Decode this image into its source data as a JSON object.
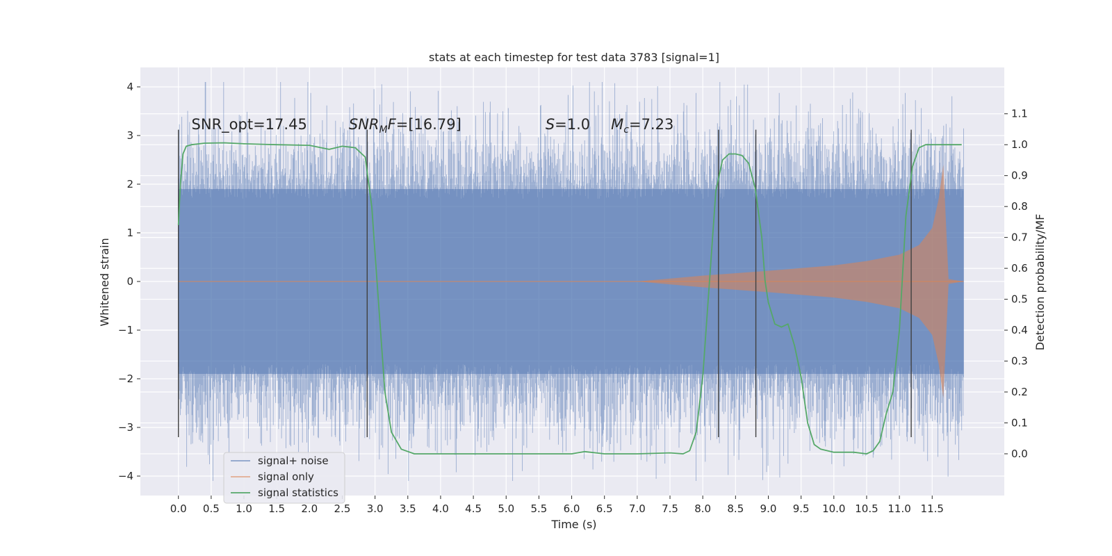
{
  "chart_data": {
    "type": "line",
    "title": "stats at each timestep for test data 3783 [signal=1]",
    "xlabel": "Time (s)",
    "ylabel": "Whitened strain",
    "y2label": "Detection probability/MF",
    "xlim": [
      -0.58,
      12.6
    ],
    "ylim": [
      -4.4,
      4.4
    ],
    "y2lim": [
      -0.135,
      1.25
    ],
    "x_ticks": [
      0.0,
      0.5,
      1.0,
      1.5,
      2.0,
      2.5,
      3.0,
      3.5,
      4.0,
      4.5,
      5.0,
      5.5,
      6.0,
      6.5,
      7.0,
      7.5,
      8.0,
      8.5,
      9.0,
      9.5,
      10.0,
      10.5,
      11.0,
      11.5
    ],
    "x_tick_labels": [
      "0.0",
      "0.5",
      "1.0",
      "1.5",
      "2.0",
      "2.5",
      "3.0",
      "3.5",
      "4.0",
      "4.5",
      "5.0",
      "5.5",
      "6.0",
      "6.5",
      "7.0",
      "7.5",
      "8.0",
      "8.5",
      "9.0",
      "9.5",
      "10.0",
      "10.5",
      "11.0",
      "11.5"
    ],
    "y_ticks": [
      -4,
      -3,
      -2,
      -1,
      0,
      1,
      2,
      3,
      4
    ],
    "y_tick_labels": [
      "−4",
      "−3",
      "−2",
      "−1",
      "0",
      "1",
      "2",
      "3",
      "4"
    ],
    "y2_ticks": [
      0.0,
      0.1,
      0.2,
      0.3,
      0.4,
      0.5,
      0.6,
      0.7,
      0.8,
      0.9,
      1.0,
      1.1
    ],
    "y2_tick_labels": [
      "0.0",
      "0.1",
      "0.2",
      "0.3",
      "0.4",
      "0.5",
      "0.6",
      "0.7",
      "0.8",
      "0.9",
      "1.0",
      "1.1"
    ],
    "grid": true,
    "legend_position": "lower-left",
    "annotations": [
      {
        "text": "SNR_opt=17.45",
        "x": 0.2
      },
      {
        "text": "SNR_MF=[16.79]",
        "x": 2.6
      },
      {
        "text": "S=1.0",
        "x": 5.6
      },
      {
        "text": "M_c=7.23",
        "x": 6.6
      }
    ],
    "vertical_markers": [
      0.0,
      2.88,
      8.24,
      8.81,
      11.18
    ],
    "series": [
      {
        "name": "signal+ noise",
        "axis": "left",
        "color": "#4c72b0",
        "description": "whitened noisy strain, roughly within -3 to 3 with spikes to about +/-4",
        "x_range": [
          0.0,
          11.98
        ],
        "typical_amplitude": 1.9,
        "max_abs": 4.1
      },
      {
        "name": "signal only",
        "axis": "left",
        "color": "#dd8452",
        "description": "chirp waveform growing from ~0 at 7 s to peak ~2.4 at 11.67 s then ringdown",
        "envelope_x": [
          7.0,
          8.0,
          9.0,
          10.0,
          10.5,
          11.0,
          11.3,
          11.5,
          11.6,
          11.65,
          11.67,
          11.75,
          11.98
        ],
        "envelope_y": [
          0.0,
          0.12,
          0.22,
          0.33,
          0.42,
          0.55,
          0.75,
          1.1,
          1.7,
          2.2,
          2.4,
          0.05,
          0.0
        ]
      },
      {
        "name": "signal statistics",
        "axis": "right",
        "color": "#55a868",
        "x": [
          0.0,
          0.03,
          0.07,
          0.12,
          0.2,
          0.4,
          0.7,
          1.0,
          1.5,
          2.0,
          2.3,
          2.5,
          2.7,
          2.85,
          2.95,
          3.05,
          3.15,
          3.25,
          3.4,
          3.6,
          4.0,
          5.0,
          6.0,
          6.2,
          6.5,
          7.0,
          7.5,
          7.7,
          7.8,
          7.9,
          8.0,
          8.1,
          8.2,
          8.3,
          8.4,
          8.5,
          8.6,
          8.7,
          8.8,
          8.9,
          8.95,
          9.0,
          9.1,
          9.2,
          9.3,
          9.4,
          9.5,
          9.6,
          9.7,
          9.8,
          10.0,
          10.3,
          10.5,
          10.6,
          10.7,
          10.8,
          10.9,
          11.0,
          11.1,
          11.2,
          11.3,
          11.4,
          11.5,
          11.6,
          11.7,
          11.8,
          11.95
        ],
        "y": [
          0.74,
          0.87,
          0.97,
          0.995,
          1.0,
          1.005,
          1.006,
          1.003,
          1.0,
          0.998,
          0.985,
          0.995,
          0.99,
          0.96,
          0.8,
          0.5,
          0.2,
          0.07,
          0.015,
          0.0,
          0.0,
          0.0,
          0.0,
          0.007,
          0.0,
          0.0,
          0.003,
          0.0,
          0.01,
          0.07,
          0.25,
          0.55,
          0.85,
          0.95,
          0.97,
          0.97,
          0.965,
          0.94,
          0.86,
          0.7,
          0.56,
          0.49,
          0.42,
          0.41,
          0.42,
          0.35,
          0.25,
          0.1,
          0.03,
          0.015,
          0.005,
          0.005,
          0.0,
          0.01,
          0.04,
          0.13,
          0.2,
          0.4,
          0.77,
          0.93,
          0.99,
          1.0,
          1.0,
          1.0,
          1.0,
          1.0,
          1.0
        ]
      }
    ]
  }
}
